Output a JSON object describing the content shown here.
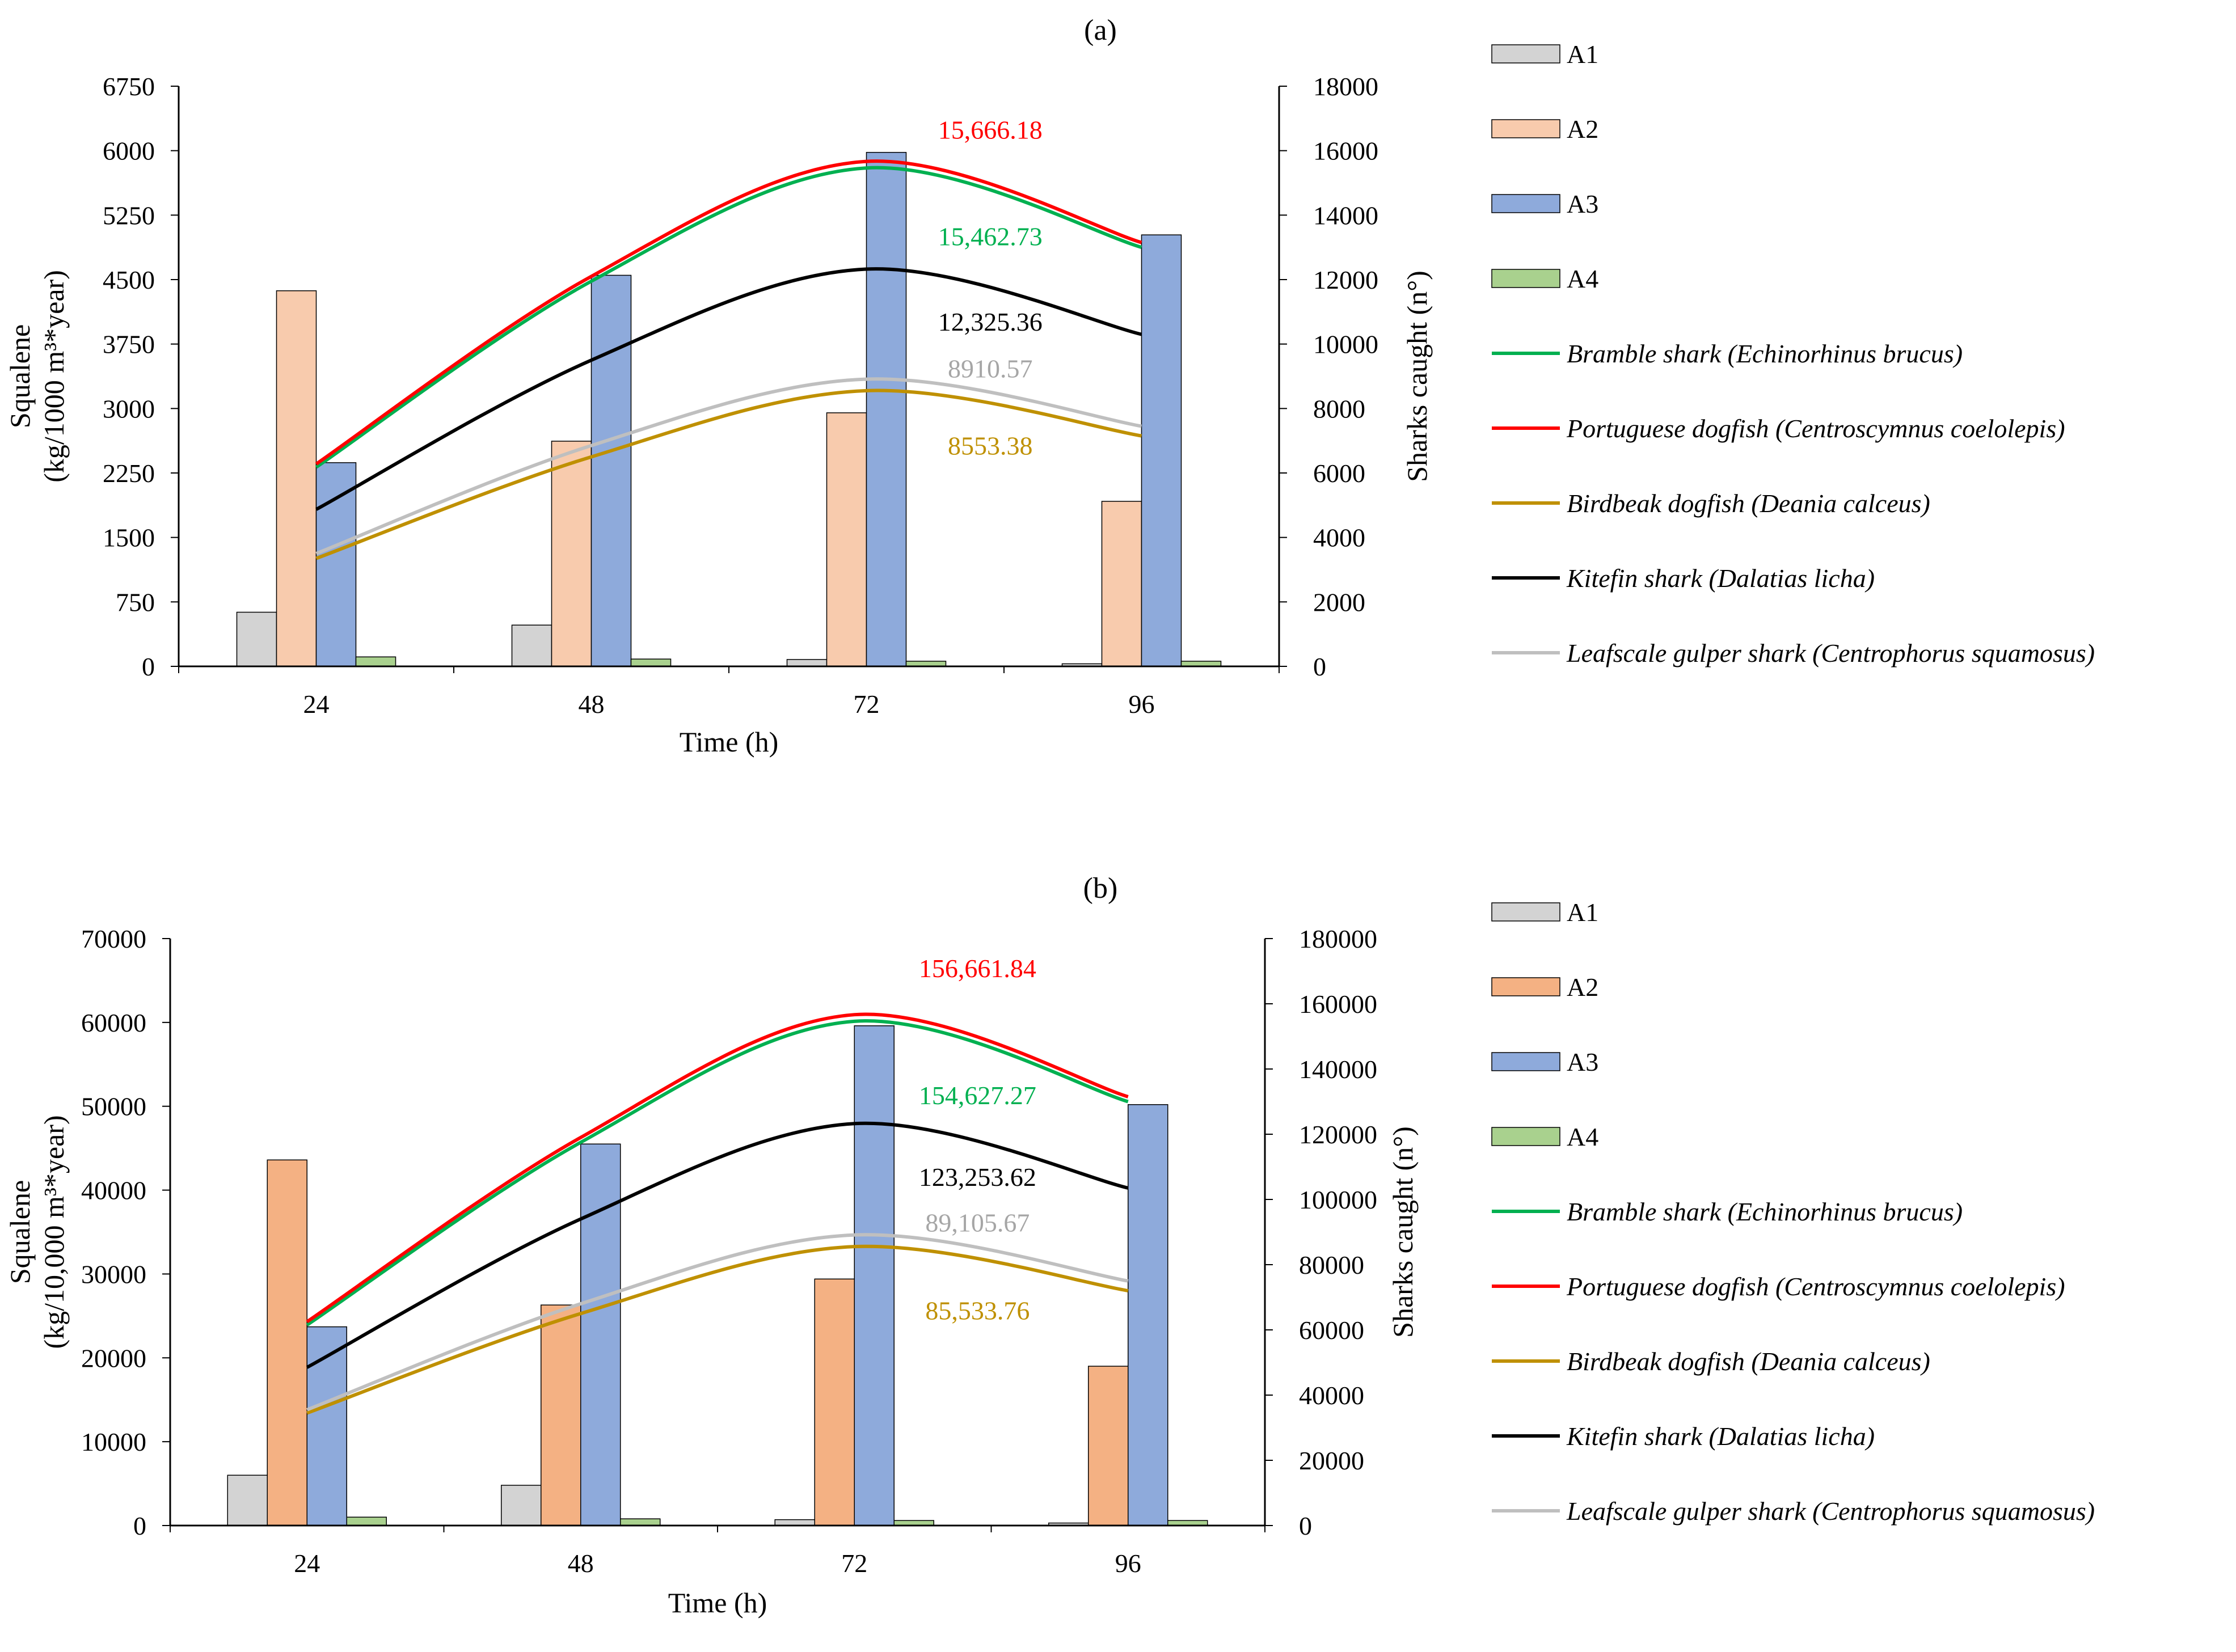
{
  "chart_data": [
    {
      "panel_label": "(a)",
      "type": "bar+line",
      "categories": [
        "24",
        "48",
        "72",
        "96"
      ],
      "xlabel": "Time (h)",
      "ylabel_line1": "Squalene",
      "ylabel_line2": "(kg/1000 m³*year)",
      "ylim": [
        0,
        6750
      ],
      "yticks": [
        "0",
        "750",
        "1500",
        "2250",
        "3000",
        "3750",
        "4500",
        "5250",
        "6000",
        "6750"
      ],
      "y2label": "Sharks caught (n°)",
      "y2lim": [
        0,
        18000
      ],
      "y2ticks": [
        "0",
        "2000",
        "4000",
        "6000",
        "8000",
        "10000",
        "12000",
        "14000",
        "16000",
        "18000"
      ],
      "bar_series": [
        {
          "name": "A1",
          "color": "#d3d3d3",
          "values": [
            630,
            480,
            80,
            30
          ]
        },
        {
          "name": "A2",
          "color": "#f8cbad",
          "values": [
            4370,
            2620,
            2950,
            1920
          ]
        },
        {
          "name": "A3",
          "color": "#8eaadb",
          "values": [
            2370,
            4550,
            5980,
            5020
          ]
        },
        {
          "name": "A4",
          "color": "#a9d18e",
          "values": [
            110,
            85,
            60,
            60
          ]
        }
      ],
      "line_series": [
        {
          "name": "Bramble shark ",
          "latin": "(Echinorhinus brucus)",
          "color": "#00b050",
          "values": [
            6180,
            11950,
            15462.73,
            13000
          ]
        },
        {
          "name": "Portuguese dogfish ",
          "latin": "(Centroscymnus coelolepis)",
          "color": "#ff0000",
          "values": [
            6280,
            12100,
            15666.18,
            13150
          ]
        },
        {
          "name": "Birdbeak dogfish ",
          "latin": "(Deania calceus)",
          "color": "#bf9000",
          "values": [
            3350,
            6500,
            8553.38,
            7150
          ]
        },
        {
          "name": "Kitefin shark ",
          "latin": "(Dalatias licha)",
          "color": "#000000",
          "values": [
            4870,
            9500,
            12325.36,
            10300
          ]
        },
        {
          "name": "Leafscale gulper shark ",
          "latin": "(Centrophorus squamosus)",
          "color": "#bfbfbf",
          "values": [
            3500,
            6850,
            8910.57,
            7450
          ]
        }
      ],
      "annotations": [
        {
          "text": "15,666.18",
          "color": "#ff0000",
          "at_category": 2.45,
          "at_y2": 16650
        },
        {
          "text": "15,462.73",
          "color": "#00b050",
          "at_category": 2.45,
          "at_y2": 13350
        },
        {
          "text": "12,325.36",
          "color": "#000000",
          "at_category": 2.45,
          "at_y2": 10700
        },
        {
          "text": "8910.57",
          "color": "#a6a6a6",
          "at_category": 2.45,
          "at_y2": 9250
        },
        {
          "text": "8553.38",
          "color": "#bf9000",
          "at_category": 2.45,
          "at_y2": 6850
        }
      ]
    },
    {
      "panel_label": "(b)",
      "type": "bar+line",
      "categories": [
        "24",
        "48",
        "72",
        "96"
      ],
      "xlabel": "Time (h)",
      "ylabel_line1": "Squalene",
      "ylabel_line2": "(kg/10,000 m³*year)",
      "ylim": [
        0,
        70000
      ],
      "yticks": [
        "0",
        "10000",
        "20000",
        "30000",
        "40000",
        "50000",
        "60000",
        "70000"
      ],
      "y2label": "Sharks caught (n°)",
      "y2lim": [
        0,
        180000
      ],
      "y2ticks": [
        "0",
        "20000",
        "40000",
        "60000",
        "80000",
        "100000",
        "120000",
        "140000",
        "160000",
        "180000"
      ],
      "bar_series": [
        {
          "name": "A1",
          "color": "#d3d3d3",
          "values": [
            6000,
            4800,
            700,
            300
          ]
        },
        {
          "name": "A2",
          "color": "#f4b183",
          "values": [
            43600,
            26300,
            29400,
            19000
          ]
        },
        {
          "name": "A3",
          "color": "#8eaadb",
          "values": [
            23700,
            45500,
            59600,
            50200
          ]
        },
        {
          "name": "A4",
          "color": "#a9d18e",
          "values": [
            1000,
            800,
            600,
            600
          ]
        }
      ],
      "line_series": [
        {
          "name": "Bramble shark ",
          "latin": "(Echinorhinus brucus)",
          "color": "#00b050",
          "values": [
            61500,
            117500,
            154627.27,
            130000
          ]
        },
        {
          "name": "Portuguese dogfish ",
          "latin": "(Centroscymnus coelolepis)",
          "color": "#ff0000",
          "values": [
            62500,
            119000,
            156661.84,
            131500
          ]
        },
        {
          "name": "Birdbeak dogfish ",
          "latin": "(Deania calceus)",
          "color": "#bf9000",
          "values": [
            34500,
            65000,
            85533.76,
            72000
          ]
        },
        {
          "name": "Kitefin shark ",
          "latin": "(Dalatias licha)",
          "color": "#000000",
          "values": [
            48500,
            94000,
            123253.62,
            103500
          ]
        },
        {
          "name": "Leafscale gulper shark ",
          "latin": "(Centrophorus squamosus)",
          "color": "#bfbfbf",
          "values": [
            35500,
            68000,
            89105.67,
            75000
          ]
        }
      ],
      "annotations": [
        {
          "text": "156,661.84",
          "color": "#ff0000",
          "at_category": 2.45,
          "at_y2": 171000
        },
        {
          "text": "154,627.27",
          "color": "#00b050",
          "at_category": 2.45,
          "at_y2": 132000
        },
        {
          "text": "123,253.62",
          "color": "#000000",
          "at_category": 2.45,
          "at_y2": 107000
        },
        {
          "text": "89,105.67",
          "color": "#a6a6a6",
          "at_category": 2.45,
          "at_y2": 93000
        },
        {
          "text": "85,533.76",
          "color": "#bf9000",
          "at_category": 2.45,
          "at_y2": 66000
        }
      ]
    }
  ]
}
